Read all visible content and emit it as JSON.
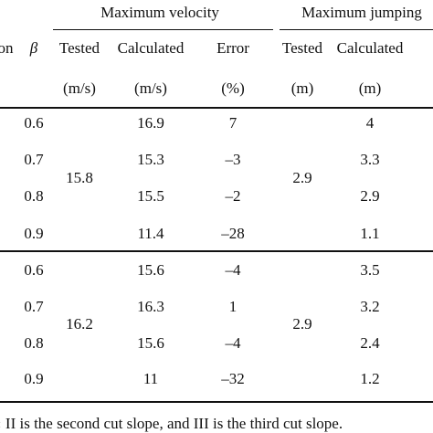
{
  "header": {
    "group_velocity": "Maximum velocity",
    "group_jumping": "Maximum jumping",
    "col_condition_fragment": "on",
    "col_beta": "β",
    "col_tested_v": "Tested",
    "col_calculated_v": "Calculated",
    "col_error": "Error",
    "col_tested_j": "Tested",
    "col_calculated_j": "Calculated",
    "unit_tested_v": "(m/s)",
    "unit_calculated_v": "(m/s)",
    "unit_error": "(%)",
    "unit_tested_j": "(m)",
    "unit_calculated_j": "(m)"
  },
  "groups": [
    {
      "tested_velocity": "15.8",
      "tested_jumping": "2.9",
      "rows": [
        {
          "beta": "0.6",
          "calc_velocity": "16.9",
          "error": "7",
          "calc_jumping": "4"
        },
        {
          "beta": "0.7",
          "calc_velocity": "15.3",
          "error": "–3",
          "calc_jumping": "3.3"
        },
        {
          "beta": "0.8",
          "calc_velocity": "15.5",
          "error": "–2",
          "calc_jumping": "2.9"
        },
        {
          "beta": "0.9",
          "calc_velocity": "11.4",
          "error": "–28",
          "calc_jumping": "1.1"
        }
      ]
    },
    {
      "tested_velocity": "16.2",
      "tested_jumping": "2.9",
      "rows": [
        {
          "beta": "0.6",
          "calc_velocity": "15.6",
          "error": "–4",
          "calc_jumping": "3.5"
        },
        {
          "beta": "0.7",
          "calc_velocity": "16.3",
          "error": "1",
          "calc_jumping": "3.2"
        },
        {
          "beta": "0.8",
          "calc_velocity": "15.6",
          "error": "–4",
          "calc_jumping": "2.4"
        },
        {
          "beta": "0.9",
          "calc_velocity": "11",
          "error": "–32",
          "calc_jumping": "1.2"
        }
      ]
    }
  ],
  "footnote": {
    "prefix": ":",
    "text": "II is the second cut slope, and III is the third cut slope."
  }
}
